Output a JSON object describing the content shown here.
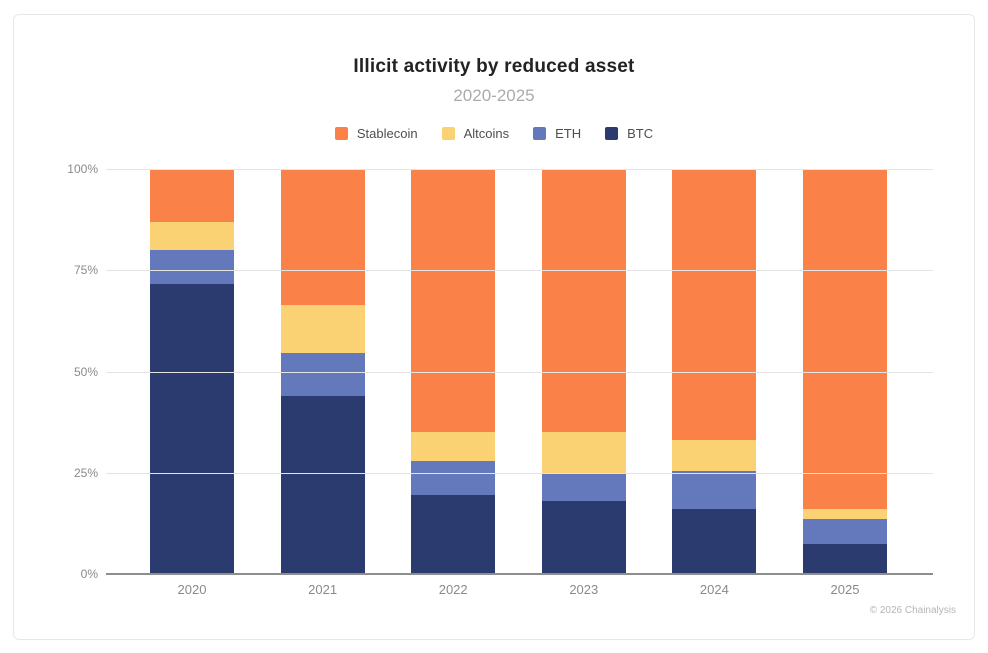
{
  "footer": {
    "credit": "© 2026 Chainalysis"
  },
  "chart_data": {
    "type": "bar",
    "variant": "stacked-100",
    "title": "Illicit activity by reduced asset",
    "subtitle": "2020-2025",
    "categories": [
      "2020",
      "2021",
      "2022",
      "2023",
      "2024",
      "2025"
    ],
    "series": [
      {
        "name": "BTC",
        "color": "#2b3a6f",
        "values": [
          71.5,
          44.0,
          19.5,
          18.0,
          16.0,
          7.5
        ]
      },
      {
        "name": "ETH",
        "color": "#6379bc",
        "values": [
          8.5,
          10.5,
          8.5,
          7.0,
          9.5,
          6.0
        ]
      },
      {
        "name": "Altcoins",
        "color": "#fad173",
        "values": [
          7.0,
          12.0,
          7.0,
          10.0,
          7.5,
          2.5
        ]
      },
      {
        "name": "Stablecoin",
        "color": "#fa8148",
        "values": [
          13.0,
          33.5,
          65.0,
          65.0,
          67.0,
          84.0
        ]
      }
    ],
    "legend_order": [
      "Stablecoin",
      "Altcoins",
      "ETH",
      "BTC"
    ],
    "y_ticks": [
      {
        "value": 0,
        "label": "0%"
      },
      {
        "value": 25,
        "label": "25%"
      },
      {
        "value": 50,
        "label": "50%"
      },
      {
        "value": 75,
        "label": "75%"
      },
      {
        "value": 100,
        "label": "100%"
      }
    ],
    "ylim": [
      0,
      100
    ],
    "grid": true,
    "legend_position": "top",
    "unit": "%"
  }
}
